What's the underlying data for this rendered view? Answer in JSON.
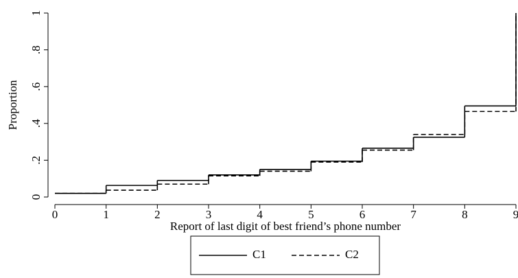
{
  "chart_data": {
    "type": "step",
    "x": [
      0,
      1,
      2,
      3,
      4,
      5,
      6,
      7,
      8,
      9
    ],
    "series": [
      {
        "name": "C1",
        "color": "#000000",
        "dash": "solid",
        "values": [
          0.02,
          0.063,
          0.09,
          0.12,
          0.15,
          0.195,
          0.265,
          0.325,
          0.495,
          1
        ]
      },
      {
        "name": "C2",
        "color": "#000000",
        "dash": "dashed",
        "values": [
          0.02,
          0.037,
          0.07,
          0.115,
          0.14,
          0.19,
          0.255,
          0.34,
          0.465,
          1
        ]
      }
    ],
    "xlabel": "Report of last digit of best friend’s phone number",
    "ylabel": "Proportion",
    "xlim": [
      0,
      9
    ],
    "xticks": [
      0,
      1,
      2,
      3,
      4,
      5,
      6,
      7,
      8,
      9
    ],
    "ylim": [
      0,
      1
    ],
    "yticks": [
      0,
      {
        "value": 0.2,
        "label": ".2"
      },
      {
        "value": 0.4,
        "label": ".4"
      },
      {
        "value": 0.6,
        "label": ".6"
      },
      {
        "value": 0.8,
        "label": ".8"
      },
      1
    ],
    "legend": "bottom"
  }
}
